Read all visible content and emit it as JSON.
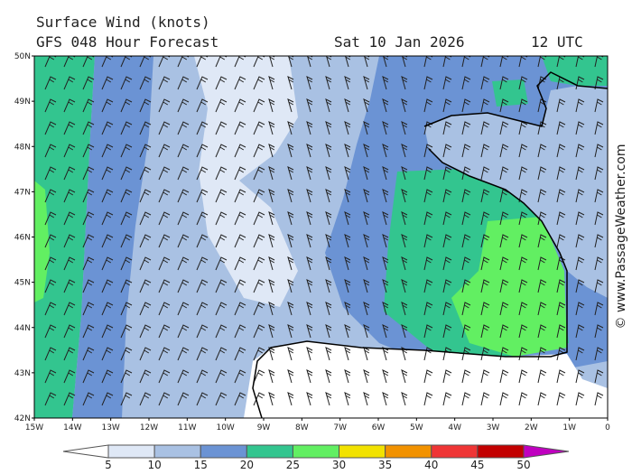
{
  "header": {
    "title": "Surface Wind (knots)",
    "subtitle": "GFS 048 Hour Forecast",
    "date": "Sat 10 Jan 2026",
    "time": "12 UTC"
  },
  "map": {
    "lat_labels": [
      "50N",
      "49N",
      "48N",
      "47N",
      "46N",
      "45N",
      "44N",
      "43N",
      "42N"
    ],
    "lon_labels": [
      "15W",
      "14W",
      "13W",
      "12W",
      "11W",
      "10W",
      "9W",
      "8W",
      "7W",
      "6W",
      "5W",
      "4W",
      "3W",
      "2W",
      "1W",
      "0"
    ]
  },
  "colorbar": {
    "labels": [
      "5",
      "10",
      "15",
      "20",
      "25",
      "30",
      "35",
      "40",
      "45",
      "50"
    ],
    "colors": [
      "#dfe8f6",
      "#a9c1e3",
      "#6b93d4",
      "#33c58f",
      "#62ef62",
      "#f2e200",
      "#f29200",
      "#ef3535",
      "#c20000"
    ],
    "under_color": "#ffffff",
    "over_color": "#c000c0"
  },
  "credit": "© www.PassageWeather.com"
}
